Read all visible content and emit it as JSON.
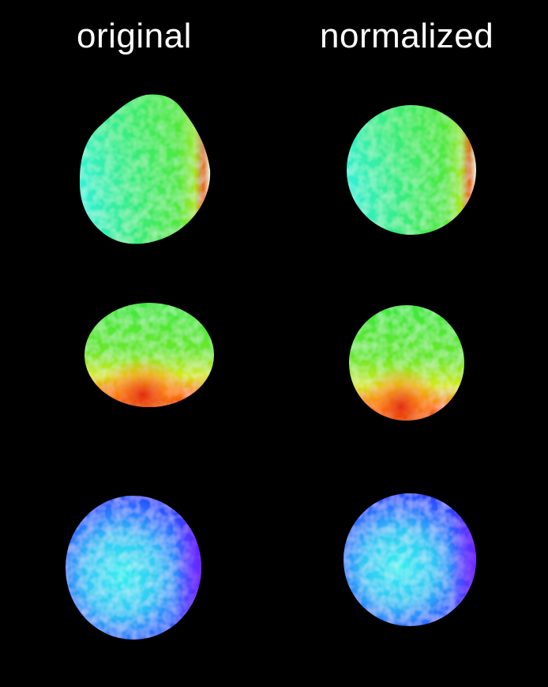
{
  "headers": {
    "original": "original",
    "normalized": "normalized"
  },
  "colors": {
    "background": "#000000",
    "text": "#ffffff",
    "green": "#33e84a",
    "cyan": "#2ff2e0",
    "blue": "#2a5cff",
    "orange": "#ff6a10",
    "red": "#d41a0a",
    "yellow": "#f4f020",
    "violet": "#7a1cff"
  },
  "panels": [
    {
      "row": 1,
      "column": "original",
      "dominant": "green-cyan",
      "hotspot": "right edge red/white"
    },
    {
      "row": 1,
      "column": "normalized",
      "dominant": "green-cyan",
      "hotspot": "right edge red/white"
    },
    {
      "row": 2,
      "column": "original",
      "dominant": "green-yellow",
      "hotspot": "lower red/orange"
    },
    {
      "row": 2,
      "column": "normalized",
      "dominant": "green-yellow",
      "hotspot": "lower red/orange"
    },
    {
      "row": 3,
      "column": "original",
      "dominant": "blue-cyan",
      "hotspot": "right edge violet"
    },
    {
      "row": 3,
      "column": "normalized",
      "dominant": "blue-cyan",
      "hotspot": "right edge violet"
    }
  ]
}
